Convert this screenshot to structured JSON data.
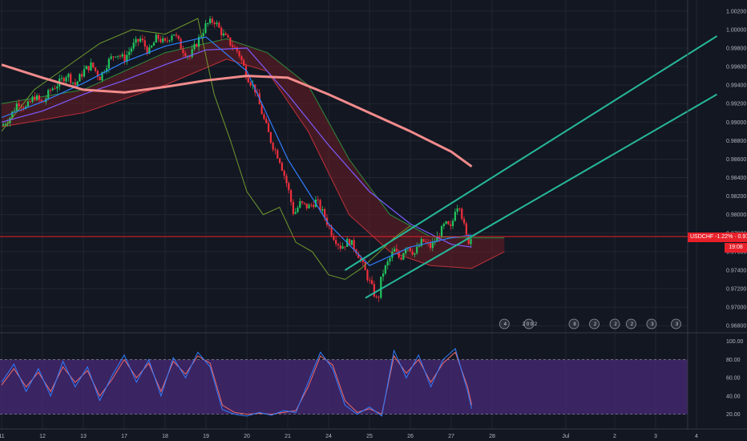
{
  "theme": {
    "background": "#131722",
    "grid": "#22262f",
    "axis_text": "#b2b5be",
    "bull": "#22c55e",
    "bear": "#ef2f3c",
    "sma_long": "#f28b8b",
    "sma_mid": "#7c5cff",
    "sma_fast": "#2f7fff",
    "ichimoku_lagging": "#6f9a2c",
    "cloud_bull": "#2e6b3a",
    "cloud_bear": "#6b1e24",
    "channel": "#26b89a",
    "stoch_k": "#2f7fff",
    "stoch_d": "#f06a6a",
    "stoch_band": "#4a2a78"
  },
  "ticker": {
    "symbol_line": "USDCHF -1.22% · 0.97764",
    "countdown": "19:08"
  },
  "chart_data": [
    {
      "type": "line",
      "panel": "price",
      "y_axis_ticks": [
        "1.00200",
        "1.00000",
        "0.99800",
        "0.99600",
        "0.99400",
        "0.99200",
        "0.99000",
        "0.98800",
        "0.98600",
        "0.98400",
        "0.98200",
        "0.98000",
        "0.97800",
        "0.97600",
        "0.97400",
        "0.97200",
        "0.97000",
        "0.96800"
      ],
      "ylim": [
        0.9675,
        1.0025
      ],
      "x_axis_ticks": [
        "11",
        "12",
        "13",
        "17",
        "18",
        "19",
        "20",
        "21",
        "24",
        "25",
        "26",
        "27",
        "28",
        "Jul",
        "2",
        "3",
        "4"
      ],
      "x_tick_days": [
        0,
        1,
        2,
        3,
        4,
        5,
        6,
        7,
        8,
        9,
        10,
        11,
        12,
        13.8,
        15,
        16,
        17
      ],
      "last_price": 0.97764,
      "price_path": [
        [
          0.0,
          0.9896
        ],
        [
          0.2,
          0.9905
        ],
        [
          0.4,
          0.9922
        ],
        [
          0.6,
          0.9915
        ],
        [
          0.8,
          0.9928
        ],
        [
          1.0,
          0.992
        ],
        [
          1.2,
          0.9935
        ],
        [
          1.4,
          0.9942
        ],
        [
          1.6,
          0.9952
        ],
        [
          1.8,
          0.994
        ],
        [
          2.0,
          0.9955
        ],
        [
          2.2,
          0.9962
        ],
        [
          2.4,
          0.9948
        ],
        [
          2.6,
          0.9965
        ],
        [
          2.8,
          0.9975
        ],
        [
          3.0,
          0.9968
        ],
        [
          3.2,
          0.9982
        ],
        [
          3.4,
          0.999
        ],
        [
          3.6,
          0.9975
        ],
        [
          3.8,
          0.9992
        ],
        [
          4.0,
          0.9985
        ],
        [
          4.2,
          0.9998
        ],
        [
          4.4,
          0.998
        ],
        [
          4.6,
          0.997
        ],
        [
          4.8,
          0.9988
        ],
        [
          5.0,
          1.0005
        ],
        [
          5.2,
          1.001
        ],
        [
          5.4,
          0.9995
        ],
        [
          5.6,
          0.9985
        ],
        [
          5.8,
          0.9975
        ],
        [
          6.0,
          0.995
        ],
        [
          6.2,
          0.9935
        ],
        [
          6.4,
          0.9905
        ],
        [
          6.6,
          0.9878
        ],
        [
          6.8,
          0.986
        ],
        [
          7.0,
          0.983
        ],
        [
          7.15,
          0.98
        ],
        [
          7.3,
          0.9812
        ],
        [
          7.5,
          0.9808
        ],
        [
          7.7,
          0.9815
        ],
        [
          7.9,
          0.9798
        ],
        [
          8.1,
          0.9778
        ],
        [
          8.3,
          0.9765
        ],
        [
          8.5,
          0.9772
        ],
        [
          8.7,
          0.976
        ],
        [
          8.9,
          0.9738
        ],
        [
          9.05,
          0.9722
        ],
        [
          9.2,
          0.9705
        ],
        [
          9.3,
          0.9735
        ],
        [
          9.45,
          0.9748
        ],
        [
          9.6,
          0.9762
        ],
        [
          9.75,
          0.9752
        ],
        [
          9.9,
          0.9768
        ],
        [
          10.1,
          0.9758
        ],
        [
          10.3,
          0.9772
        ],
        [
          10.5,
          0.9765
        ],
        [
          10.7,
          0.9778
        ],
        [
          10.85,
          0.979
        ],
        [
          11.0,
          0.9784
        ],
        [
          11.1,
          0.9808
        ],
        [
          11.2,
          0.9812
        ],
        [
          11.3,
          0.979
        ],
        [
          11.4,
          0.977
        ],
        [
          11.5,
          0.9776
        ]
      ],
      "sma_long": [
        [
          0,
          0.9962
        ],
        [
          1,
          0.9948
        ],
        [
          2,
          0.9935
        ],
        [
          3,
          0.9932
        ],
        [
          4,
          0.9938
        ],
        [
          5,
          0.9945
        ],
        [
          6,
          0.995
        ],
        [
          7,
          0.9948
        ],
        [
          8,
          0.993
        ],
        [
          9,
          0.991
        ],
        [
          10,
          0.989
        ],
        [
          11,
          0.9868
        ],
        [
          11.5,
          0.9852
        ]
      ],
      "sma_mid": [
        [
          0,
          0.99
        ],
        [
          1,
          0.9912
        ],
        [
          2,
          0.993
        ],
        [
          3,
          0.9945
        ],
        [
          4,
          0.9962
        ],
        [
          5,
          0.9978
        ],
        [
          6,
          0.998
        ],
        [
          7,
          0.993
        ],
        [
          8,
          0.9875
        ],
        [
          9,
          0.9825
        ],
        [
          10,
          0.979
        ],
        [
          11,
          0.9768
        ],
        [
          11.5,
          0.9765
        ]
      ],
      "sma_fast": [
        [
          0,
          0.9905
        ],
        [
          1,
          0.9922
        ],
        [
          2,
          0.9942
        ],
        [
          3,
          0.9965
        ],
        [
          4,
          0.9982
        ],
        [
          5,
          0.9992
        ],
        [
          6,
          0.9955
        ],
        [
          7,
          0.986
        ],
        [
          8,
          0.979
        ],
        [
          9,
          0.9745
        ],
        [
          10,
          0.9765
        ],
        [
          11,
          0.9775
        ],
        [
          11.5,
          0.9778
        ]
      ],
      "ichimoku_lagging": [
        [
          0,
          0.989
        ],
        [
          0.8,
          0.9935
        ],
        [
          1.6,
          0.996
        ],
        [
          2.4,
          0.9985
        ],
        [
          3.2,
          1.0
        ],
        [
          4.0,
          0.9995
        ],
        [
          4.8,
          1.0012
        ],
        [
          5.2,
          0.993
        ],
        [
          5.6,
          0.988
        ],
        [
          6.0,
          0.9825
        ],
        [
          6.4,
          0.98
        ],
        [
          6.8,
          0.9808
        ],
        [
          7.2,
          0.977
        ],
        [
          7.6,
          0.976
        ],
        [
          8.0,
          0.9735
        ],
        [
          8.4,
          0.973
        ],
        [
          8.8,
          0.9742
        ],
        [
          9.2,
          0.9758
        ],
        [
          9.6,
          0.9775
        ],
        [
          10.0,
          0.9788
        ]
      ],
      "cloud_upper": [
        [
          0,
          0.992
        ],
        [
          2,
          0.9935
        ],
        [
          4,
          0.9975
        ],
        [
          5.5,
          0.999
        ],
        [
          6.5,
          0.9975
        ],
        [
          7.5,
          0.994
        ],
        [
          8.5,
          0.986
        ],
        [
          9.5,
          0.98
        ],
        [
          10.5,
          0.9776
        ],
        [
          11.5,
          0.9775
        ],
        [
          12.3,
          0.9775
        ]
      ],
      "cloud_lower": [
        [
          0,
          0.9895
        ],
        [
          2,
          0.991
        ],
        [
          4,
          0.994
        ],
        [
          5.5,
          0.9968
        ],
        [
          6.5,
          0.9955
        ],
        [
          7.5,
          0.989
        ],
        [
          8.5,
          0.98
        ],
        [
          9.5,
          0.976
        ],
        [
          10.5,
          0.9745
        ],
        [
          11.5,
          0.9742
        ],
        [
          12.3,
          0.976
        ]
      ],
      "channel_lower": [
        [
          8.9,
          0.971
        ],
        [
          17.5,
          0.993
        ]
      ],
      "channel_upper": [
        [
          8.4,
          0.974
        ],
        [
          17.5,
          0.9993
        ]
      ],
      "event_markers": [
        {
          "day": 12.3,
          "icon": "flag-icon",
          "text": "4"
        },
        {
          "day": 12.9,
          "icon": "flag-icon",
          "text": "2 0 0 2"
        },
        {
          "day": 14.0,
          "icon": "flag-icon",
          "text": "8"
        },
        {
          "day": 14.5,
          "icon": "flag-icon",
          "text": "2"
        },
        {
          "day": 15.0,
          "icon": "flag-icon",
          "text": "2"
        },
        {
          "day": 15.4,
          "icon": "flag-icon",
          "text": "2"
        },
        {
          "day": 15.9,
          "icon": "flag-icon",
          "text": "3"
        },
        {
          "day": 16.5,
          "icon": "flag-icon",
          "text": "3"
        }
      ]
    },
    {
      "type": "line",
      "panel": "stochastic",
      "y_axis_ticks": [
        "100.00",
        "80.00",
        "60.00",
        "40.00",
        "20.00"
      ],
      "ylim": [
        10,
        105
      ],
      "band": [
        20,
        80
      ],
      "k_line": [
        [
          0,
          55
        ],
        [
          0.3,
          75
        ],
        [
          0.6,
          45
        ],
        [
          0.9,
          70
        ],
        [
          1.2,
          40
        ],
        [
          1.5,
          78
        ],
        [
          1.8,
          50
        ],
        [
          2.1,
          72
        ],
        [
          2.4,
          35
        ],
        [
          2.7,
          62
        ],
        [
          3.0,
          85
        ],
        [
          3.3,
          55
        ],
        [
          3.6,
          80
        ],
        [
          3.9,
          40
        ],
        [
          4.2,
          82
        ],
        [
          4.5,
          60
        ],
        [
          4.8,
          88
        ],
        [
          5.1,
          72
        ],
        [
          5.4,
          25
        ],
        [
          5.7,
          20
        ],
        [
          6.0,
          18
        ],
        [
          6.3,
          22
        ],
        [
          6.6,
          19
        ],
        [
          6.9,
          24
        ],
        [
          7.2,
          22
        ],
        [
          7.5,
          55
        ],
        [
          7.8,
          88
        ],
        [
          8.1,
          70
        ],
        [
          8.4,
          30
        ],
        [
          8.7,
          20
        ],
        [
          9.0,
          28
        ],
        [
          9.3,
          18
        ],
        [
          9.6,
          90
        ],
        [
          9.9,
          60
        ],
        [
          10.2,
          85
        ],
        [
          10.5,
          50
        ],
        [
          10.8,
          80
        ],
        [
          11.1,
          92
        ],
        [
          11.4,
          45
        ],
        [
          11.5,
          26
        ]
      ],
      "d_line": [
        [
          0,
          52
        ],
        [
          0.3,
          70
        ],
        [
          0.6,
          50
        ],
        [
          0.9,
          66
        ],
        [
          1.2,
          45
        ],
        [
          1.5,
          72
        ],
        [
          1.8,
          55
        ],
        [
          2.1,
          68
        ],
        [
          2.4,
          40
        ],
        [
          2.7,
          58
        ],
        [
          3.0,
          80
        ],
        [
          3.3,
          60
        ],
        [
          3.6,
          76
        ],
        [
          3.9,
          45
        ],
        [
          4.2,
          78
        ],
        [
          4.5,
          64
        ],
        [
          4.8,
          84
        ],
        [
          5.1,
          76
        ],
        [
          5.4,
          30
        ],
        [
          5.7,
          22
        ],
        [
          6.0,
          20
        ],
        [
          6.3,
          21
        ],
        [
          6.6,
          20
        ],
        [
          6.9,
          22
        ],
        [
          7.2,
          24
        ],
        [
          7.5,
          50
        ],
        [
          7.8,
          84
        ],
        [
          8.1,
          74
        ],
        [
          8.4,
          35
        ],
        [
          8.7,
          22
        ],
        [
          9.0,
          26
        ],
        [
          9.3,
          20
        ],
        [
          9.6,
          84
        ],
        [
          9.9,
          65
        ],
        [
          10.2,
          80
        ],
        [
          10.5,
          55
        ],
        [
          10.8,
          76
        ],
        [
          11.1,
          88
        ],
        [
          11.4,
          50
        ],
        [
          11.5,
          30
        ]
      ]
    }
  ]
}
